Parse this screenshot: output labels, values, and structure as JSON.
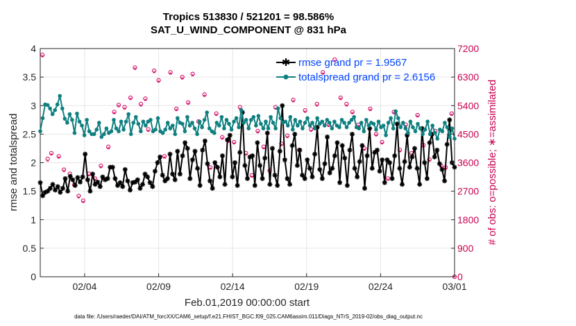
{
  "chart_data": {
    "type": "line",
    "title_line1": "Tropics 513830 / 521201 = 98.586%",
    "title_line2": "SAT_U_WIND_COMPONENT @ 831 hPa",
    "xlabel": "Feb.01,2019 00:00:00 start",
    "ylabel_left": "rmse and totalspread",
    "ylabel_right": "# of obs: o=possible; ∗=assimilated",
    "footer": "data file: /Users/raeder/DAI/ATM_forcXX/CAM6_setup/f.e21.FHIST_BGC.f09_025.CAM6assim.011/Diags_NTrS_2019-02/obs_diag_output.nc",
    "xlim": [
      0,
      28
    ],
    "ylim_left": [
      0,
      4
    ],
    "ylim_right": [
      0,
      7200
    ],
    "x_tick_positions": [
      3,
      8,
      13,
      18,
      23,
      28
    ],
    "x_tick_labels": [
      "02/04",
      "02/09",
      "02/14",
      "02/19",
      "02/24",
      "03/01"
    ],
    "y_left_ticks": [
      0,
      0.5,
      1,
      1.5,
      2,
      2.5,
      3,
      3.5,
      4
    ],
    "y_left_tick_labels": [
      "0",
      "0.5",
      "1",
      "1.5",
      "2",
      "2.5",
      "3",
      "3.5",
      "4"
    ],
    "y_right_ticks": [
      0,
      900,
      1800,
      2700,
      3600,
      4500,
      5400,
      6300,
      7200
    ],
    "y_right_tick_labels": [
      "0",
      "900",
      "1800",
      "2700",
      "3600",
      "4500",
      "5400",
      "6300",
      "7200"
    ],
    "grid": true,
    "legend_position": "top-right",
    "series": [
      {
        "name": "rmse grand pr = 1.9567",
        "color": "#000000",
        "marker": "star",
        "values": [
          1.65,
          1.42,
          1.48,
          1.5,
          1.55,
          1.62,
          1.52,
          1.58,
          1.48,
          1.55,
          1.72,
          1.5,
          1.76,
          1.7,
          1.6,
          1.74,
          1.66,
          1.75,
          2.15,
          1.7,
          1.5,
          1.8,
          1.62,
          1.66,
          1.58,
          1.75,
          1.7,
          1.72,
          1.92,
          1.92,
          1.72,
          1.6,
          1.65,
          1.58,
          1.88,
          1.68,
          1.52,
          1.65,
          1.66,
          1.7,
          1.55,
          1.62,
          1.8,
          1.75,
          1.65,
          1.58,
          1.85,
          2.0,
          2.1,
          1.78,
          1.68,
          1.72,
          2.15,
          1.8,
          1.7,
          2.2,
          1.8,
          2.12,
          2.35,
          2.25,
          1.72,
          2.05,
          2.2,
          1.9,
          1.6,
          2.22,
          2.38,
          1.98,
          1.68,
          1.55,
          2.0,
          1.92,
          1.75,
          2.12,
          1.62,
          2.4,
          2.48,
          1.75,
          2.0,
          1.6,
          2.18,
          2.88,
          1.95,
          1.72,
          2.1,
          2.12,
          1.6,
          2.35,
          1.95,
          1.72,
          2.08,
          2.52,
          1.62,
          2.25,
          1.78,
          1.6,
          2.2,
          3.0,
          2.05,
          1.72,
          1.62,
          2.3,
          2.5,
          1.95,
          2.22,
          1.78,
          1.72,
          2.05,
          1.9,
          1.75,
          2.15,
          2.62,
          1.88,
          1.72,
          1.98,
          2.45,
          1.82,
          1.9,
          2.12,
          2.35,
          1.65,
          2.3,
          2.08,
          1.6,
          2.22,
          2.5,
          1.9,
          1.75,
          2.02,
          2.3,
          1.55,
          2.12,
          2.6,
          1.9,
          2.18,
          2.22,
          1.85,
          2.05,
          1.65,
          2.05,
          2.0,
          1.72,
          2.12,
          2.68,
          1.9,
          1.62,
          2.02,
          2.48,
          1.92,
          2.1,
          2.25,
          1.9,
          1.62,
          2.6,
          2.0,
          1.72,
          2.35,
          2.5,
          2.1,
          2.22,
          1.98,
          1.88,
          1.68,
          2.32,
          2.75,
          2.0,
          1.92
        ],
        "legend_label": "rmse grand pr = 1.9567"
      },
      {
        "name": "totalspread grand pr = 2.6156",
        "color": "#0f7f7f",
        "marker": "circle",
        "values": [
          2.55,
          2.78,
          3.02,
          3.01,
          2.95,
          2.85,
          2.92,
          3.02,
          3.17,
          2.95,
          2.77,
          2.7,
          2.85,
          2.75,
          2.52,
          2.86,
          2.72,
          2.65,
          2.48,
          2.75,
          2.55,
          2.5,
          2.5,
          2.58,
          2.7,
          2.45,
          2.5,
          2.6,
          2.52,
          2.55,
          2.75,
          2.6,
          2.55,
          2.72,
          2.58,
          2.72,
          2.85,
          2.5,
          2.7,
          2.8,
          2.68,
          2.55,
          2.72,
          2.65,
          2.72,
          2.75,
          2.55,
          2.58,
          2.78,
          2.55,
          2.52,
          2.58,
          2.7,
          2.6,
          2.65,
          2.5,
          2.78,
          2.7,
          2.68,
          2.55,
          2.8,
          2.65,
          2.7,
          2.6,
          2.5,
          2.72,
          2.62,
          2.75,
          2.88,
          2.6,
          2.55,
          2.52,
          2.7,
          2.65,
          2.8,
          2.6,
          2.75,
          2.68,
          2.58,
          2.72,
          2.78,
          2.62,
          2.92,
          2.7,
          2.75,
          2.6,
          2.75,
          2.8,
          2.65,
          2.82,
          2.68,
          2.6,
          2.72,
          2.6,
          2.8,
          2.7,
          2.6,
          2.95,
          2.78,
          2.7,
          2.72,
          2.65,
          2.8,
          2.58,
          2.75,
          2.65,
          2.72,
          2.6,
          2.7,
          2.78,
          2.65,
          2.7,
          2.6,
          2.78,
          2.68,
          2.72,
          2.65,
          2.75,
          2.7,
          2.6,
          2.72,
          2.65,
          2.62,
          2.75,
          2.7,
          2.62,
          2.7,
          2.75,
          2.8,
          2.62,
          2.6,
          2.7,
          2.55,
          2.75,
          2.65,
          2.7,
          2.68,
          2.58,
          2.72,
          2.62,
          2.65,
          2.48,
          2.7,
          2.78,
          2.6,
          2.9,
          2.78,
          2.62,
          2.7,
          2.6,
          2.52,
          2.72,
          2.62,
          2.55,
          2.68,
          2.6,
          2.5,
          2.58,
          2.72,
          2.5,
          2.65,
          2.52,
          2.42,
          2.58,
          2.55,
          2.7,
          2.62,
          2.45,
          2.6,
          2.42
        ],
        "legend_label": "totalspread grand pr = 2.6156"
      }
    ],
    "obs_possible": {
      "color": "#d0005f",
      "marker": "circle",
      "points": [
        [
          0.15,
          7000
        ],
        [
          0.5,
          3720
        ],
        [
          0.75,
          3900
        ],
        [
          1.25,
          3800
        ],
        [
          1.6,
          3380
        ],
        [
          2.0,
          3250
        ],
        [
          2.3,
          2900
        ],
        [
          2.6,
          2550
        ],
        [
          2.9,
          2400
        ],
        [
          3.3,
          3250
        ],
        [
          3.7,
          3100
        ],
        [
          4.1,
          3500
        ],
        [
          4.6,
          4100
        ],
        [
          5.0,
          5200
        ],
        [
          5.3,
          5420
        ],
        [
          5.7,
          5350
        ],
        [
          6.1,
          5650
        ],
        [
          6.4,
          6600
        ],
        [
          6.8,
          5450
        ],
        [
          7.1,
          5620
        ],
        [
          7.3,
          4650
        ],
        [
          7.7,
          6500
        ],
        [
          8.0,
          6200
        ],
        [
          8.4,
          3800
        ],
        [
          8.8,
          6450
        ],
        [
          9.2,
          5300
        ],
        [
          9.6,
          6300
        ],
        [
          10.0,
          5500
        ],
        [
          10.3,
          6400
        ],
        [
          10.7,
          4900
        ],
        [
          11.1,
          5750
        ],
        [
          11.5,
          3450
        ],
        [
          11.9,
          5150
        ],
        [
          12.3,
          4400
        ],
        [
          12.7,
          4300
        ],
        [
          13.1,
          4250
        ],
        [
          13.5,
          5350
        ],
        [
          13.9,
          3900
        ],
        [
          14.3,
          3200
        ],
        [
          14.7,
          4600
        ],
        [
          15.1,
          4100
        ],
        [
          15.5,
          3350
        ],
        [
          15.9,
          5350
        ],
        [
          16.3,
          4200
        ],
        [
          16.7,
          4450
        ],
        [
          17.1,
          5580
        ],
        [
          17.5,
          4000
        ],
        [
          17.9,
          5250
        ],
        [
          18.3,
          4650
        ],
        [
          18.7,
          5450
        ],
        [
          19.1,
          6450
        ],
        [
          19.5,
          4800
        ],
        [
          19.9,
          6850
        ],
        [
          20.3,
          5650
        ],
        [
          20.7,
          5450
        ],
        [
          21.1,
          5200
        ],
        [
          21.5,
          4800
        ],
        [
          21.9,
          4050
        ],
        [
          22.3,
          5300
        ],
        [
          22.7,
          4500
        ],
        [
          23.1,
          4250
        ],
        [
          23.5,
          3100
        ],
        [
          23.9,
          5200
        ],
        [
          24.3,
          4000
        ],
        [
          24.7,
          4800
        ],
        [
          25.1,
          3900
        ],
        [
          25.5,
          5100
        ],
        [
          25.9,
          4150
        ],
        [
          26.3,
          3700
        ],
        [
          26.7,
          4600
        ],
        [
          27.1,
          3500
        ],
        [
          27.4,
          3450
        ],
        [
          27.8,
          5150
        ],
        [
          28.0,
          0
        ]
      ]
    },
    "obs_assimilated": {
      "color": "#d0005f",
      "marker": "star",
      "points": [
        [
          0.15,
          6950
        ],
        [
          0.5,
          3650
        ],
        [
          0.75,
          3850
        ],
        [
          1.25,
          3750
        ],
        [
          1.6,
          3330
        ],
        [
          2.0,
          3200
        ],
        [
          2.3,
          2850
        ],
        [
          2.6,
          2500
        ],
        [
          2.9,
          2350
        ],
        [
          3.3,
          3200
        ],
        [
          3.7,
          3050
        ],
        [
          4.1,
          3450
        ],
        [
          4.6,
          4050
        ],
        [
          5.0,
          5150
        ],
        [
          5.3,
          5370
        ],
        [
          5.7,
          5300
        ],
        [
          6.1,
          5600
        ],
        [
          6.4,
          6550
        ],
        [
          6.8,
          5400
        ],
        [
          7.1,
          5570
        ],
        [
          7.3,
          4600
        ],
        [
          7.7,
          6450
        ],
        [
          8.0,
          6150
        ],
        [
          8.4,
          3750
        ],
        [
          8.8,
          6400
        ],
        [
          9.2,
          5250
        ],
        [
          9.6,
          6250
        ],
        [
          10.0,
          5450
        ],
        [
          10.3,
          6350
        ],
        [
          10.7,
          4850
        ],
        [
          11.1,
          5700
        ],
        [
          11.5,
          3400
        ],
        [
          11.9,
          5100
        ],
        [
          12.3,
          4350
        ],
        [
          12.7,
          4250
        ],
        [
          13.1,
          4200
        ],
        [
          13.5,
          5300
        ],
        [
          13.9,
          3850
        ],
        [
          14.3,
          3150
        ],
        [
          14.7,
          4550
        ],
        [
          15.1,
          4050
        ],
        [
          15.5,
          3300
        ],
        [
          15.9,
          5300
        ],
        [
          16.3,
          4150
        ],
        [
          16.7,
          4400
        ],
        [
          17.1,
          5530
        ],
        [
          17.5,
          3950
        ],
        [
          17.9,
          5200
        ],
        [
          18.3,
          4600
        ],
        [
          18.7,
          5400
        ],
        [
          19.1,
          6400
        ],
        [
          19.5,
          4750
        ],
        [
          19.9,
          6800
        ],
        [
          20.3,
          5600
        ],
        [
          20.7,
          5400
        ],
        [
          21.1,
          5150
        ],
        [
          21.5,
          4750
        ],
        [
          21.9,
          4000
        ],
        [
          22.3,
          5250
        ],
        [
          22.7,
          4450
        ],
        [
          23.1,
          4200
        ],
        [
          23.5,
          3050
        ],
        [
          23.9,
          5150
        ],
        [
          24.3,
          3950
        ],
        [
          24.7,
          4750
        ],
        [
          25.1,
          3850
        ],
        [
          25.5,
          5050
        ],
        [
          25.9,
          4100
        ],
        [
          26.3,
          3650
        ],
        [
          26.7,
          4550
        ],
        [
          27.1,
          3450
        ],
        [
          27.4,
          3400
        ],
        [
          27.8,
          5100
        ],
        [
          28.0,
          0
        ]
      ]
    }
  }
}
